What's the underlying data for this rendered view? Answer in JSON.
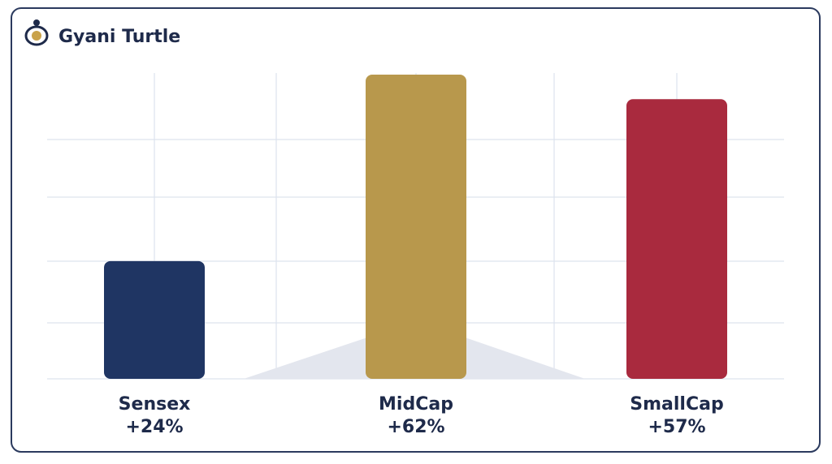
{
  "brand": "Gyani Turtle",
  "chart_data": {
    "type": "bar",
    "categories": [
      "Sensex",
      "MidCap",
      "SmallCap"
    ],
    "values": [
      24,
      62,
      57
    ],
    "value_labels": [
      "+24%",
      "+62%",
      "+57%"
    ],
    "colors": [
      "#1f3563",
      "#b8984c",
      "#a92a3e"
    ]
  }
}
